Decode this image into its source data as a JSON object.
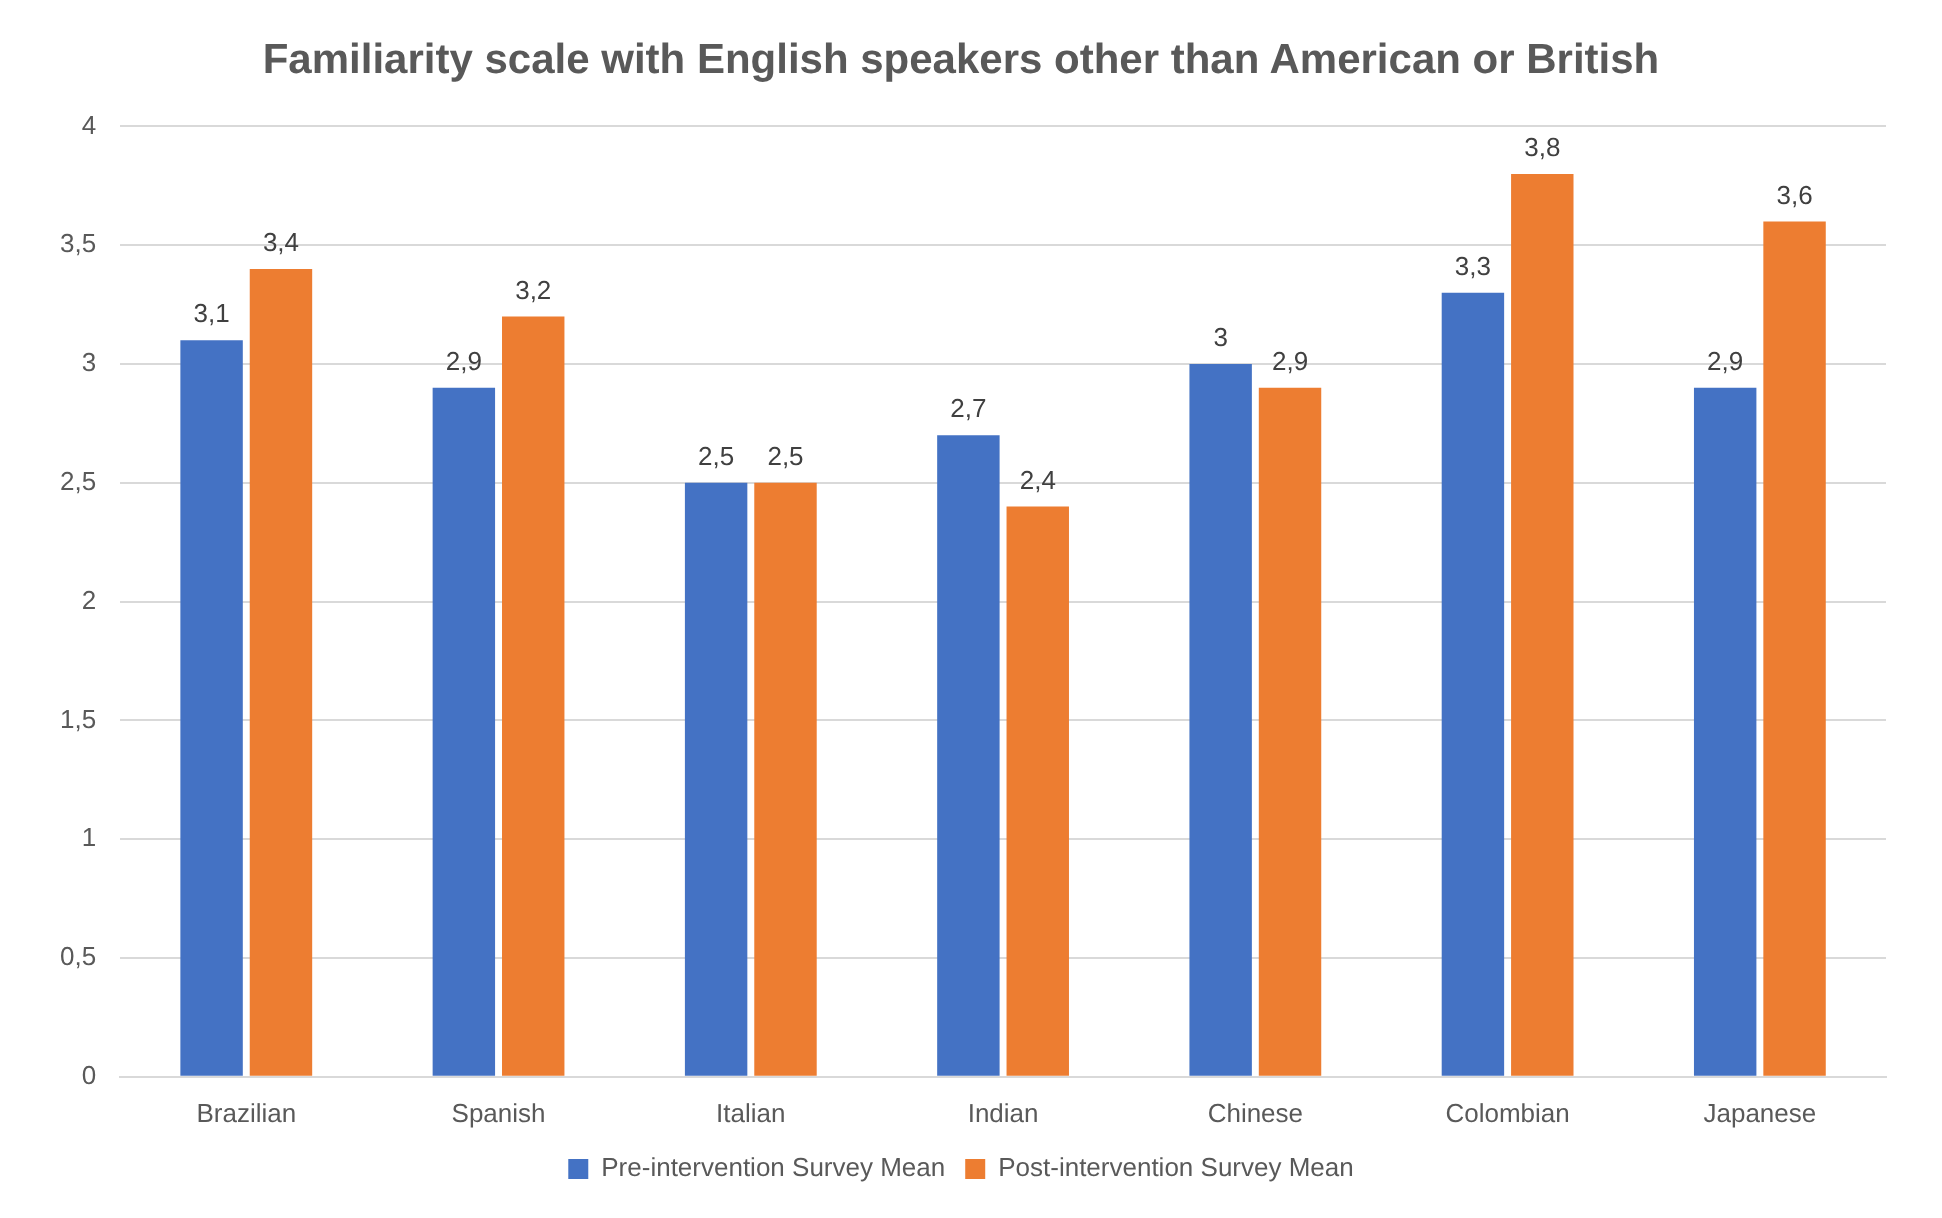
{
  "chart_data": {
    "type": "bar",
    "title": "Familiarity scale with English speakers other than American or British",
    "categories": [
      "Brazilian",
      "Spanish",
      "Italian",
      "Indian",
      "Chinese",
      "Colombian",
      "Japanese"
    ],
    "series": [
      {
        "name": "Pre-intervention Survey Mean",
        "color": "#4472c4",
        "values": [
          3.1,
          2.9,
          2.5,
          2.7,
          3,
          3.3,
          2.9
        ],
        "value_labels": [
          "3,1",
          "2,9",
          "2,5",
          "2,7",
          "3",
          "3,3",
          "2,9"
        ]
      },
      {
        "name": "Post-intervention Survey Mean",
        "color": "#ed7d31",
        "values": [
          3.4,
          3.2,
          2.5,
          2.4,
          2.9,
          3.8,
          3.6
        ],
        "value_labels": [
          "3,4",
          "3,2",
          "2,5",
          "2,4",
          "2,9",
          "3,8",
          "3,6"
        ]
      }
    ],
    "ylim": [
      0,
      4
    ],
    "yticks": [
      0,
      {
        "value": 0.5,
        "label": "0,5"
      },
      1,
      {
        "value": 1.5,
        "label": "1,5"
      },
      2,
      {
        "value": 2.5,
        "label": "2,5"
      },
      3,
      {
        "value": 3.5,
        "label": "3,5"
      },
      4
    ],
    "grid": "y",
    "legend": "bottom"
  }
}
